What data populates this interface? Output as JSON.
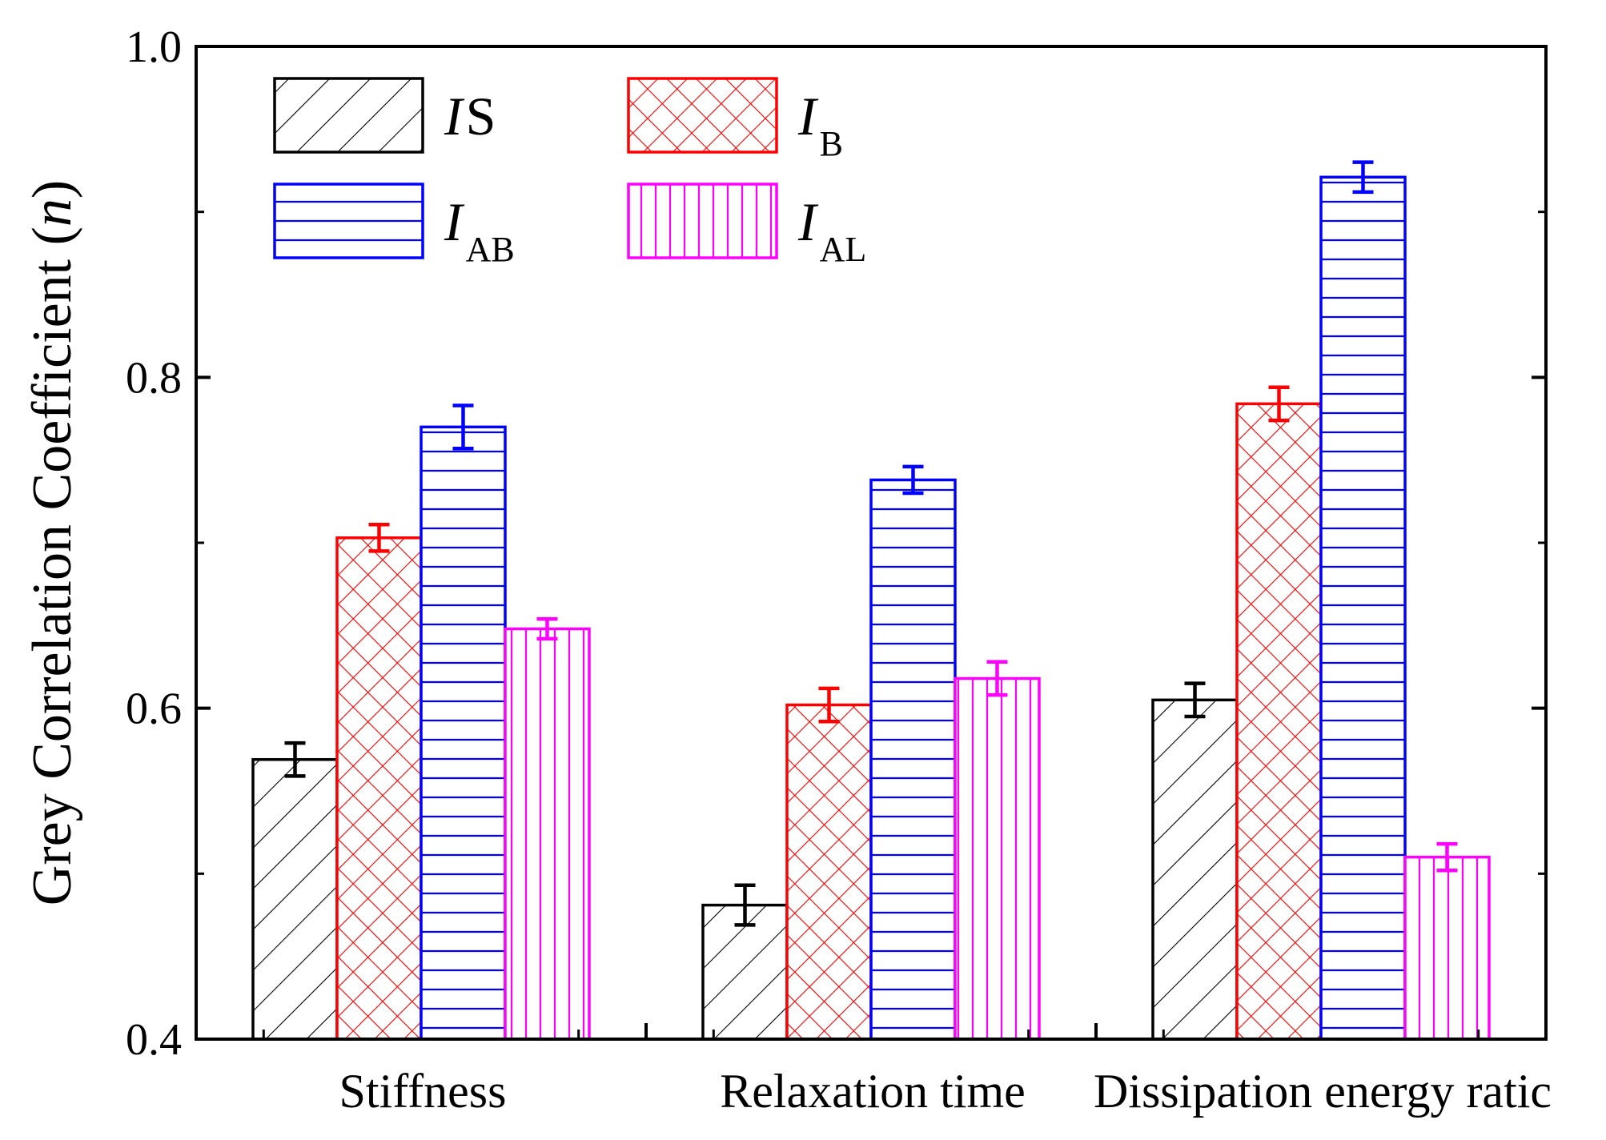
{
  "chart_data": {
    "type": "bar",
    "title": "",
    "xlabel": "",
    "ylabel": "Grey Correlation Coefficient (n)",
    "ylabel_main": "Grey Correlation Coefficient (",
    "ylabel_var": "n",
    "ylabel_close": ")",
    "ylim": [
      0.4,
      1.0
    ],
    "yticks": [
      "0.4",
      "0.6",
      "0.8",
      "1.0"
    ],
    "categories": [
      "Stiffness",
      "Relaxation time",
      "Dissipation energy ratio"
    ],
    "category_labels_shown": [
      "Stiffness",
      "Relaxation time",
      "Dissipation energy ratic"
    ],
    "series": [
      {
        "name": "IS",
        "label_main": "I",
        "label_sub": "S",
        "sub_style": "inline",
        "color": "#000000",
        "pattern": "diagonal",
        "values": [
          0.569,
          0.481,
          0.605
        ],
        "errors": [
          0.01,
          0.012,
          0.01
        ]
      },
      {
        "name": "IB",
        "label_main": "I",
        "label_sub": "B",
        "sub_style": "subscript",
        "color": "#ff0000",
        "pattern": "crosshatch",
        "values": [
          0.703,
          0.602,
          0.784
        ],
        "errors": [
          0.008,
          0.01,
          0.01
        ]
      },
      {
        "name": "IAB",
        "label_main": "I",
        "label_sub": "AB",
        "sub_style": "subscript",
        "color": "#0000ff",
        "pattern": "horizontal",
        "values": [
          0.77,
          0.738,
          0.921
        ],
        "errors": [
          0.013,
          0.008,
          0.009
        ]
      },
      {
        "name": "IAL",
        "label_main": "I",
        "label_sub": "AL",
        "sub_style": "subscript",
        "color": "#ff00ff",
        "pattern": "vertical",
        "values": [
          0.648,
          0.618,
          0.51
        ],
        "errors": [
          0.006,
          0.01,
          0.008
        ]
      }
    ],
    "grid": false,
    "legend_position": "top-left"
  }
}
